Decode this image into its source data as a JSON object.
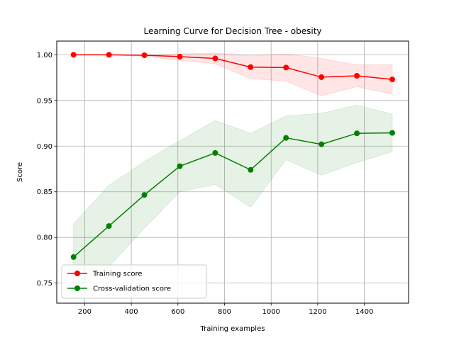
{
  "chart_data": {
    "type": "line",
    "title": "Learning Curve for Decision Tree - obesity",
    "xlabel": "Training examples",
    "ylabel": "Score",
    "xlim": [
      80,
      1590
    ],
    "ylim": [
      0.728,
      1.015
    ],
    "xticks": [
      200,
      400,
      600,
      800,
      1000,
      1200,
      1400
    ],
    "yticks": [
      0.75,
      0.8,
      0.85,
      0.9,
      0.95,
      1.0
    ],
    "grid": true,
    "legend": "lower-left",
    "x": [
      152,
      304,
      456,
      608,
      760,
      912,
      1064,
      1216,
      1368,
      1520
    ],
    "series": [
      {
        "name": "Training score",
        "color": "#ff0000",
        "values": [
          1.0,
          1.0,
          0.9995,
          0.998,
          0.996,
          0.9865,
          0.986,
          0.9755,
          0.977,
          0.973
        ],
        "band_lower": [
          1.0,
          1.0,
          0.998,
          0.994,
          0.99,
          0.974,
          0.971,
          0.955,
          0.965,
          0.957
        ],
        "band_upper": [
          1.0,
          1.0,
          1.0,
          1.001,
          1.002,
          0.999,
          1.001,
          0.996,
          0.989,
          0.989
        ]
      },
      {
        "name": "Cross-validation score",
        "color": "#008000",
        "values": [
          0.7785,
          0.8125,
          0.8465,
          0.878,
          0.8925,
          0.874,
          0.909,
          0.902,
          0.914,
          0.9145
        ],
        "band_lower": [
          0.742,
          0.768,
          0.81,
          0.85,
          0.858,
          0.833,
          0.885,
          0.868,
          0.882,
          0.894
        ],
        "band_upper": [
          0.815,
          0.857,
          0.883,
          0.906,
          0.928,
          0.914,
          0.933,
          0.936,
          0.945,
          0.935
        ]
      }
    ]
  }
}
